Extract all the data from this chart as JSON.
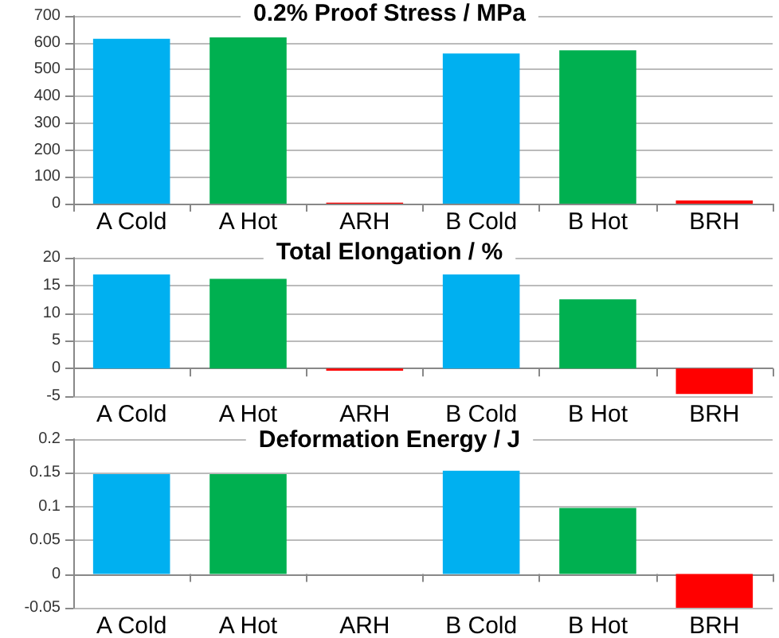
{
  "chart_data": [
    {
      "type": "bar",
      "title": "0.2% Proof Stress / MPa",
      "categories": [
        "A Cold",
        "A Hot",
        "ARH",
        "B Cold",
        "B Hot",
        "BRH"
      ],
      "values": [
        615,
        620,
        4,
        560,
        572,
        12
      ],
      "colors": [
        "#00b0f0",
        "#00b050",
        "#ff0000",
        "#00b0f0",
        "#00b050",
        "#ff0000"
      ],
      "ylim": [
        0,
        700
      ],
      "yticks": [
        0,
        100,
        200,
        300,
        400,
        500,
        600,
        700
      ],
      "grid": "y"
    },
    {
      "type": "bar",
      "title": "Total Elongation / %",
      "categories": [
        "A Cold",
        "A Hot",
        "ARH",
        "B Cold",
        "B Hot",
        "BRH"
      ],
      "values": [
        17,
        16.2,
        -0.4,
        17,
        12.5,
        -4.6
      ],
      "colors": [
        "#00b0f0",
        "#00b050",
        "#ff0000",
        "#00b0f0",
        "#00b050",
        "#ff0000"
      ],
      "ylim": [
        -5,
        20
      ],
      "yticks": [
        -5,
        0,
        5,
        10,
        15,
        20
      ],
      "grid": "y"
    },
    {
      "type": "bar",
      "title": "Deformation Energy / J",
      "categories": [
        "A Cold",
        "A Hot",
        "ARH",
        "B Cold",
        "B Hot",
        "BRH"
      ],
      "values": [
        0.148,
        0.148,
        0,
        0.153,
        0.098,
        -0.05
      ],
      "colors": [
        "#00b0f0",
        "#00b050",
        "#ff0000",
        "#00b0f0",
        "#00b050",
        "#ff0000"
      ],
      "ylim": [
        -0.05,
        0.2
      ],
      "yticks": [
        -0.05,
        0,
        0.05,
        0.1,
        0.15,
        0.2
      ],
      "grid": "y"
    }
  ]
}
